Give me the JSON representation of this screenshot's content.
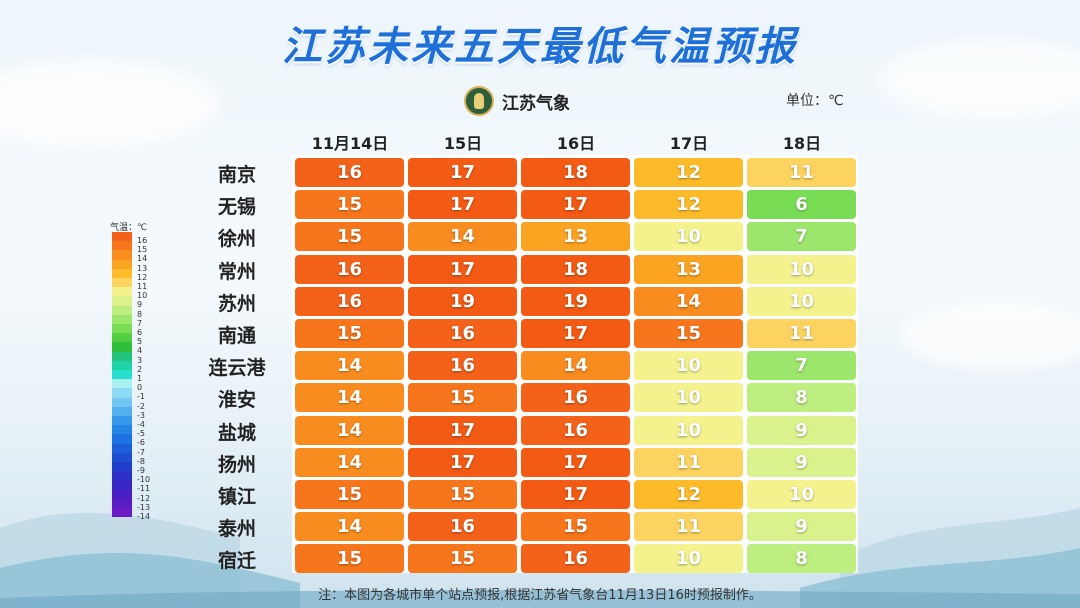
{
  "title": "江苏未来五天最低气温预报",
  "logo": {
    "text": "江苏气象",
    "icon": "meteorology-emblem-icon"
  },
  "unit_label": "单位：℃",
  "legend": {
    "title": "气温：℃",
    "stops": [
      {
        "label": "16",
        "color": "#f4621a"
      },
      {
        "label": "15",
        "color": "#f7761b"
      },
      {
        "label": "14",
        "color": "#f98c1e"
      },
      {
        "label": "13",
        "color": "#fba422"
      },
      {
        "label": "12",
        "color": "#fdbb2a"
      },
      {
        "label": "11",
        "color": "#fcd35f"
      },
      {
        "label": "10",
        "color": "#f3f28c"
      },
      {
        "label": "9",
        "color": "#d9f28b"
      },
      {
        "label": "8",
        "color": "#bdee7f"
      },
      {
        "label": "7",
        "color": "#9ce66b"
      },
      {
        "label": "6",
        "color": "#78dc55"
      },
      {
        "label": "5",
        "color": "#52cf43"
      },
      {
        "label": "4",
        "color": "#2fbf3b"
      },
      {
        "label": "3",
        "color": "#22c47d"
      },
      {
        "label": "2",
        "color": "#1fd3a8"
      },
      {
        "label": "1",
        "color": "#26dfcc"
      },
      {
        "label": "0",
        "color": "#a9f0f2"
      },
      {
        "label": "-1",
        "color": "#8fdaf4"
      },
      {
        "label": "-2",
        "color": "#72c6f2"
      },
      {
        "label": "-3",
        "color": "#53b0ef"
      },
      {
        "label": "-4",
        "color": "#3698ea"
      },
      {
        "label": "-5",
        "color": "#2385e6"
      },
      {
        "label": "-6",
        "color": "#1c72e0"
      },
      {
        "label": "-7",
        "color": "#1b5fd9"
      },
      {
        "label": "-8",
        "color": "#1c4dd2"
      },
      {
        "label": "-9",
        "color": "#213dcb"
      },
      {
        "label": "-10",
        "color": "#2c31c7"
      },
      {
        "label": "-11",
        "color": "#3a26c4"
      },
      {
        "label": "-12",
        "color": "#4a1fc3"
      },
      {
        "label": "-13",
        "color": "#5a1cc4"
      },
      {
        "label": "-14",
        "color": "#6a1bc6"
      }
    ]
  },
  "chart_data": {
    "type": "table",
    "columns": [
      "11月14日",
      "15日",
      "16日",
      "17日",
      "18日"
    ],
    "rows": [
      {
        "city": "南京",
        "values": [
          16,
          17,
          18,
          12,
          11
        ]
      },
      {
        "city": "无锡",
        "values": [
          15,
          17,
          17,
          12,
          6
        ]
      },
      {
        "city": "徐州",
        "values": [
          15,
          14,
          13,
          10,
          7
        ]
      },
      {
        "city": "常州",
        "values": [
          16,
          17,
          18,
          13,
          10
        ]
      },
      {
        "city": "苏州",
        "values": [
          16,
          19,
          19,
          14,
          10
        ]
      },
      {
        "city": "南通",
        "values": [
          15,
          16,
          17,
          15,
          11
        ]
      },
      {
        "city": "连云港",
        "values": [
          14,
          16,
          14,
          10,
          7
        ]
      },
      {
        "city": "淮安",
        "values": [
          14,
          15,
          16,
          10,
          8
        ]
      },
      {
        "city": "盐城",
        "values": [
          14,
          17,
          16,
          10,
          9
        ]
      },
      {
        "city": "扬州",
        "values": [
          14,
          17,
          17,
          11,
          9
        ]
      },
      {
        "city": "镇江",
        "values": [
          15,
          15,
          17,
          12,
          10
        ]
      },
      {
        "city": "泰州",
        "values": [
          14,
          16,
          15,
          11,
          9
        ]
      },
      {
        "city": "宿迁",
        "values": [
          15,
          15,
          16,
          10,
          8
        ]
      }
    ]
  },
  "note": "注：本图为各城市单个站点预报,根据江苏省气象台11月13日16时预报制作。"
}
